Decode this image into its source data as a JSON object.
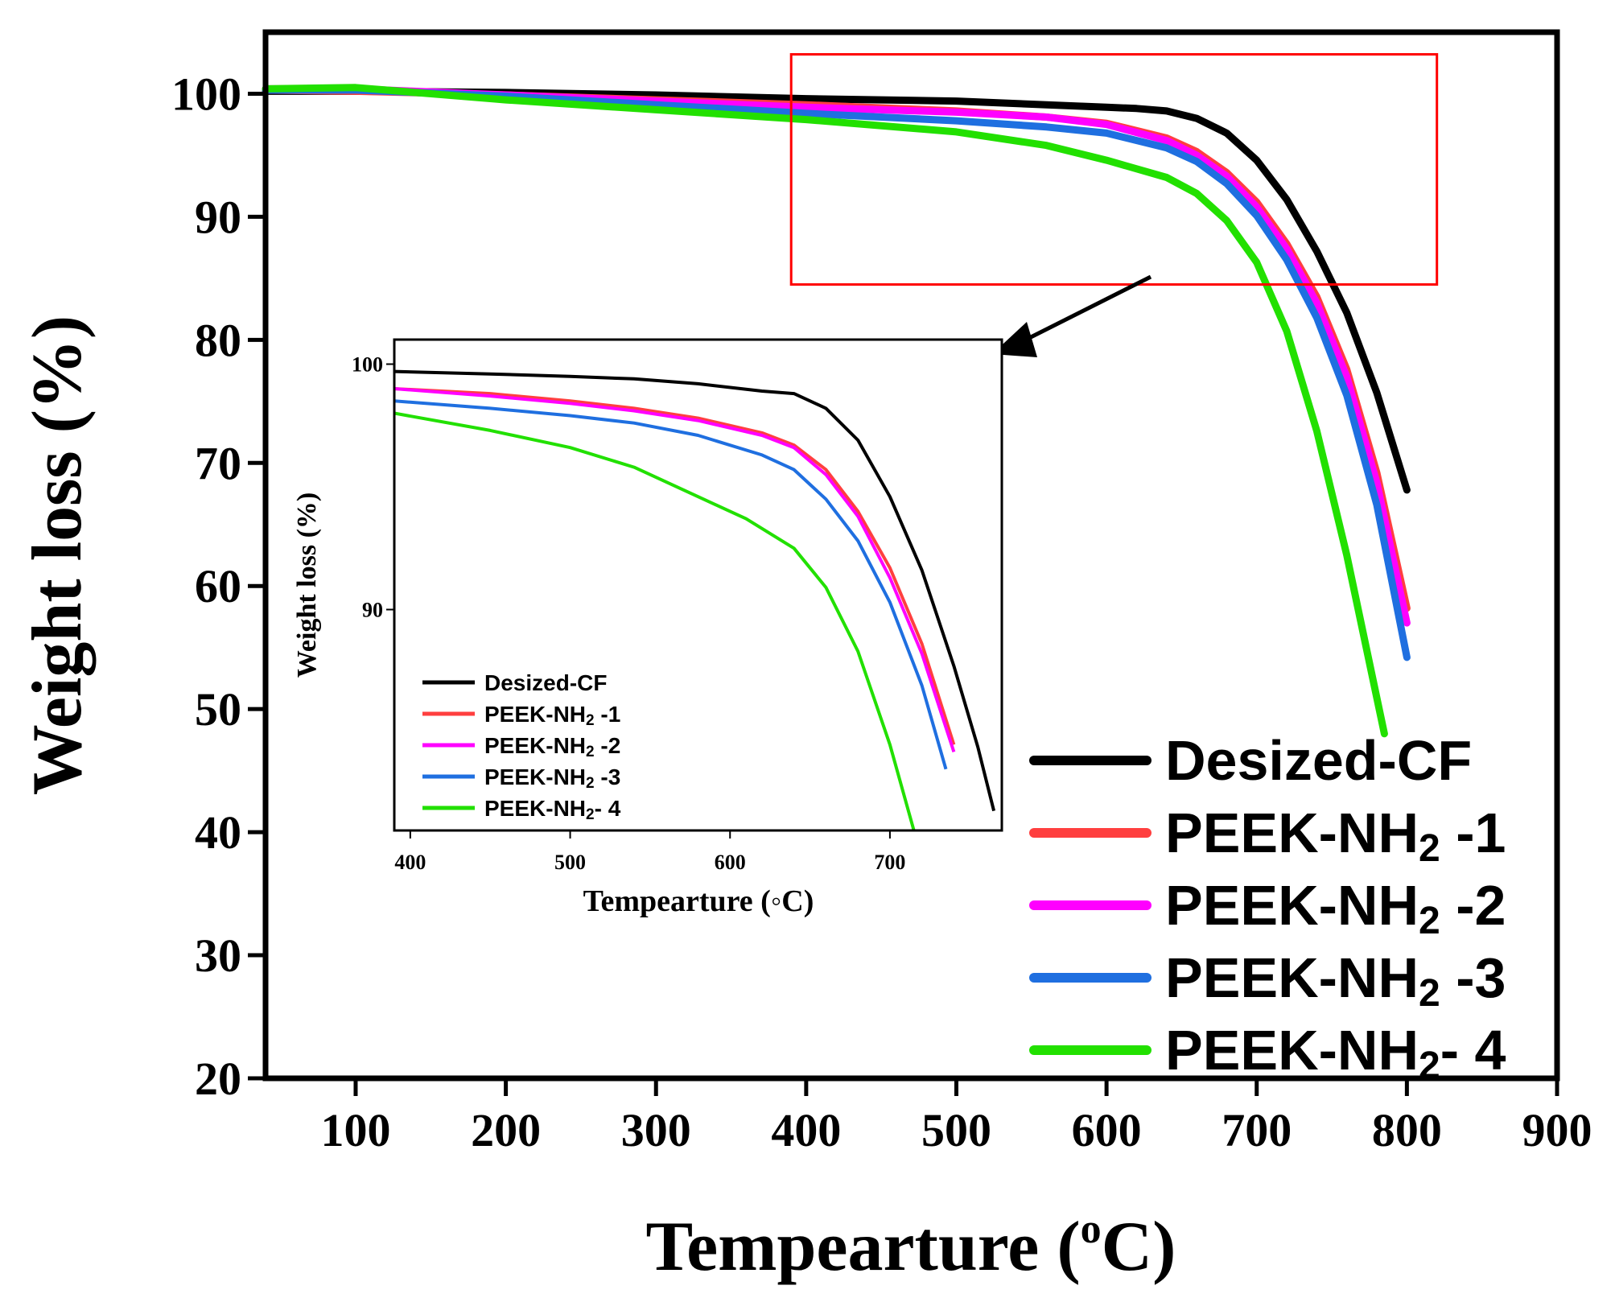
{
  "chart_data": [
    {
      "id": "main",
      "type": "line",
      "title": "",
      "xlabel": "Tempearture (",
      "xlabel_sup": "o",
      "xlabel_end": "C)",
      "ylabel": "Weight loss (%)",
      "xlim": [
        40,
        900
      ],
      "ylim": [
        20,
        105
      ],
      "xticks": [
        100,
        200,
        300,
        400,
        500,
        600,
        700,
        800,
        900
      ],
      "yticks": [
        20,
        30,
        40,
        50,
        60,
        70,
        80,
        90,
        100
      ],
      "highlight_box": {
        "x": [
          390,
          820
        ],
        "y": [
          84.5,
          103.2
        ]
      },
      "legend": {
        "position": "bottom-right",
        "entries": [
          {
            "name": "Desized-CF"
          },
          {
            "name": "PEEK-NH",
            "sub": "2",
            "suffix": " -1"
          },
          {
            "name": "PEEK-NH",
            "sub": "2",
            "suffix": " -2"
          },
          {
            "name": "PEEK-NH",
            "sub": "2",
            "suffix": " -3"
          },
          {
            "name": "PEEK-NH",
            "sub": "2",
            "suffix": "- 4"
          }
        ]
      },
      "series": [
        {
          "name": "Desized-CF",
          "color": "#000000",
          "x": [
            40,
            100,
            200,
            300,
            400,
            500,
            560,
            600,
            620,
            640,
            660,
            680,
            700,
            720,
            740,
            760,
            780,
            800
          ],
          "y": [
            100.2,
            100.2,
            100.1,
            99.9,
            99.6,
            99.4,
            99.1,
            98.9,
            98.8,
            98.6,
            98.0,
            96.8,
            94.6,
            91.4,
            87.2,
            82.2,
            75.7,
            67.8
          ]
        },
        {
          "name": "PEEK-NH2 -1",
          "color": "#ff3f3f",
          "x": [
            40,
            100,
            200,
            300,
            400,
            500,
            560,
            600,
            640,
            660,
            680,
            700,
            720,
            740,
            760,
            780,
            800
          ],
          "y": [
            100.3,
            100.2,
            99.9,
            99.5,
            99.1,
            98.6,
            98.1,
            97.6,
            96.4,
            95.3,
            93.6,
            91.2,
            87.8,
            83.5,
            77.6,
            69.2,
            58.2
          ]
        },
        {
          "name": "PEEK-NH2 -2",
          "color": "#ff00ff",
          "x": [
            40,
            100,
            200,
            300,
            400,
            500,
            560,
            600,
            640,
            660,
            680,
            700,
            720,
            740,
            760,
            780,
            800
          ],
          "y": [
            100.4,
            100.4,
            99.9,
            99.4,
            98.9,
            98.5,
            98.1,
            97.5,
            96.2,
            95.0,
            93.3,
            90.8,
            87.4,
            83.0,
            77.0,
            68.4,
            57.0
          ]
        },
        {
          "name": "PEEK-NH2 -3",
          "color": "#1f6fe0",
          "x": [
            40,
            100,
            200,
            300,
            400,
            500,
            560,
            600,
            640,
            660,
            680,
            700,
            720,
            740,
            760,
            780,
            800
          ],
          "y": [
            100.3,
            100.3,
            99.8,
            99.1,
            98.4,
            97.8,
            97.3,
            96.8,
            95.6,
            94.5,
            92.7,
            90.1,
            86.5,
            81.8,
            75.5,
            66.6,
            54.2
          ]
        },
        {
          "name": "PEEK-NH2- 4",
          "color": "#22e000",
          "x": [
            40,
            100,
            200,
            300,
            400,
            500,
            560,
            600,
            640,
            660,
            680,
            700,
            720,
            740,
            760,
            785
          ],
          "y": [
            100.4,
            100.5,
            99.5,
            98.7,
            97.9,
            96.9,
            95.8,
            94.6,
            93.2,
            91.9,
            89.7,
            86.3,
            80.7,
            72.6,
            62.5,
            48.0
          ]
        }
      ]
    },
    {
      "id": "inset",
      "type": "line",
      "xlabel": "Tempearture (◦C)",
      "ylabel": "Weight loss (%)",
      "xlim": [
        390,
        770
      ],
      "ylim": [
        81,
        101
      ],
      "xticks": [
        400,
        500,
        600,
        700
      ],
      "yticks": [
        90,
        100
      ],
      "legend": {
        "position": "bottom-left",
        "entries": [
          {
            "name": "Desized-CF"
          },
          {
            "name": "PEEK-NH",
            "sub": "2",
            "suffix": " -1"
          },
          {
            "name": "PEEK-NH",
            "sub": "2",
            "suffix": " -2"
          },
          {
            "name": "PEEK-NH",
            "sub": "2",
            "suffix": " -3"
          },
          {
            "name": "PEEK-NH",
            "sub": "2",
            "suffix": "- 4"
          }
        ]
      },
      "series": [
        {
          "name": "Desized-CF",
          "color": "#000000",
          "x": [
            390,
            450,
            500,
            540,
            580,
            620,
            640,
            660,
            680,
            700,
            720,
            740,
            755,
            765
          ],
          "y": [
            99.7,
            99.6,
            99.5,
            99.4,
            99.2,
            98.9,
            98.8,
            98.2,
            96.9,
            94.6,
            91.6,
            87.7,
            84.4,
            81.8
          ]
        },
        {
          "name": "PEEK-NH2 -1",
          "color": "#ff3f3f",
          "x": [
            390,
            450,
            500,
            540,
            580,
            620,
            640,
            660,
            680,
            700,
            720,
            740
          ],
          "y": [
            99.0,
            98.8,
            98.5,
            98.2,
            97.8,
            97.2,
            96.7,
            95.7,
            94.0,
            91.7,
            88.6,
            84.5
          ]
        },
        {
          "name": "PEEK-NH2 -2",
          "color": "#ff00ff",
          "x": [
            390,
            450,
            500,
            540,
            580,
            620,
            640,
            660,
            680,
            700,
            720,
            740
          ],
          "y": [
            99.0,
            98.7,
            98.4,
            98.1,
            97.7,
            97.1,
            96.6,
            95.5,
            93.8,
            91.3,
            88.2,
            84.2
          ]
        },
        {
          "name": "PEEK-NH2 -3",
          "color": "#1f6fe0",
          "x": [
            390,
            450,
            500,
            540,
            580,
            620,
            640,
            660,
            680,
            700,
            720,
            735
          ],
          "y": [
            98.5,
            98.2,
            97.9,
            97.6,
            97.1,
            96.3,
            95.7,
            94.5,
            92.8,
            90.3,
            86.9,
            83.5
          ]
        },
        {
          "name": "PEEK-NH2- 4",
          "color": "#22e000",
          "x": [
            390,
            450,
            500,
            540,
            580,
            610,
            640,
            660,
            680,
            700,
            715
          ],
          "y": [
            98.0,
            97.3,
            96.6,
            95.8,
            94.6,
            93.7,
            92.5,
            90.9,
            88.3,
            84.5,
            81.0
          ]
        }
      ]
    }
  ]
}
